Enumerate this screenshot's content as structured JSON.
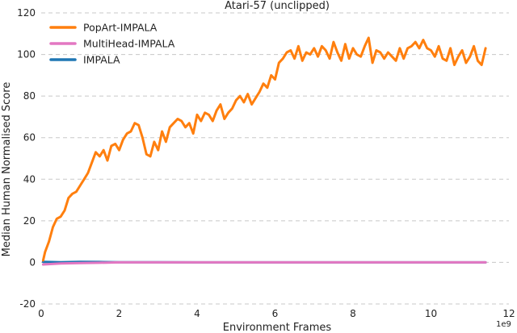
{
  "chart_data": {
    "type": "line",
    "title": "Atari-57 (unclipped)",
    "xlabel": "Environment Frames",
    "ylabel": "Median Human Normalised Score",
    "x_offset_label": "1e9",
    "xlim": [
      0,
      12
    ],
    "ylim": [
      -20,
      120
    ],
    "x_ticks": [
      0,
      2,
      4,
      6,
      8,
      10,
      12
    ],
    "y_ticks": [
      -20,
      0,
      20,
      40,
      60,
      80,
      100,
      120
    ],
    "grid": "horizontal-dashed",
    "legend_position": "top-left",
    "series": [
      {
        "name": "PopArt-IMPALA",
        "color": "#ff7f0e",
        "x": [
          0.05,
          0.1,
          0.2,
          0.3,
          0.4,
          0.5,
          0.6,
          0.7,
          0.8,
          0.9,
          1.0,
          1.1,
          1.2,
          1.3,
          1.4,
          1.5,
          1.6,
          1.7,
          1.8,
          1.9,
          2.0,
          2.1,
          2.2,
          2.3,
          2.4,
          2.5,
          2.6,
          2.7,
          2.8,
          2.9,
          3.0,
          3.1,
          3.2,
          3.3,
          3.4,
          3.5,
          3.6,
          3.7,
          3.8,
          3.9,
          4.0,
          4.1,
          4.2,
          4.3,
          4.4,
          4.5,
          4.6,
          4.7,
          4.8,
          4.9,
          5.0,
          5.1,
          5.2,
          5.3,
          5.4,
          5.5,
          5.6,
          5.7,
          5.8,
          5.9,
          6.0,
          6.1,
          6.2,
          6.3,
          6.4,
          6.5,
          6.6,
          6.7,
          6.8,
          6.9,
          7.0,
          7.1,
          7.2,
          7.3,
          7.4,
          7.5,
          7.6,
          7.7,
          7.8,
          7.9,
          8.0,
          8.1,
          8.2,
          8.3,
          8.4,
          8.5,
          8.6,
          8.7,
          8.8,
          8.9,
          9.0,
          9.1,
          9.2,
          9.3,
          9.4,
          9.5,
          9.6,
          9.7,
          9.8,
          9.9,
          10.0,
          10.1,
          10.2,
          10.3,
          10.4,
          10.5,
          10.6,
          10.7,
          10.8,
          10.9,
          11.0,
          11.1,
          11.2,
          11.3,
          11.4
        ],
        "values": [
          1,
          5,
          10,
          17,
          21,
          22,
          25,
          31,
          33,
          34,
          37,
          40,
          43,
          48,
          53,
          51,
          54,
          49,
          56,
          57,
          54,
          59,
          62,
          63,
          67,
          66,
          60,
          52,
          51,
          58,
          54,
          63,
          58,
          65,
          67,
          69,
          68,
          65,
          67,
          62,
          71,
          68,
          72,
          71,
          68,
          73,
          76,
          69,
          72,
          74,
          78,
          80,
          77,
          81,
          76,
          79,
          82,
          86,
          84,
          90,
          88,
          96,
          98,
          101,
          102,
          98,
          104,
          97,
          101,
          100,
          103,
          99,
          104,
          102,
          98,
          106,
          101,
          97,
          105,
          98,
          103,
          100,
          99,
          104,
          108,
          96,
          102,
          101,
          98,
          101,
          99,
          97,
          103,
          98,
          103,
          104,
          106,
          103,
          107,
          103,
          102,
          99,
          104,
          98,
          97,
          103,
          95,
          99,
          102,
          96,
          99,
          104,
          97,
          95,
          103
        ]
      },
      {
        "name": "MultiHead-IMPALA",
        "color": "#e377c2",
        "x": [
          0.05,
          0.5,
          1.0,
          1.5,
          2.0,
          3.0,
          4.0,
          6.0,
          8.0,
          10.0,
          11.4
        ],
        "values": [
          -1,
          -0.5,
          -0.3,
          -0.2,
          0,
          0,
          0,
          0,
          0,
          0,
          0
        ]
      },
      {
        "name": "IMPALA",
        "color": "#1f77b4",
        "x": [
          0.05,
          0.5,
          1.0,
          1.5,
          2.0,
          3.0,
          4.0,
          6.0,
          8.0,
          10.0,
          11.4
        ],
        "values": [
          0.3,
          0.1,
          0.3,
          0.2,
          0.1,
          0.1,
          0,
          0,
          0,
          0,
          0
        ]
      }
    ]
  }
}
